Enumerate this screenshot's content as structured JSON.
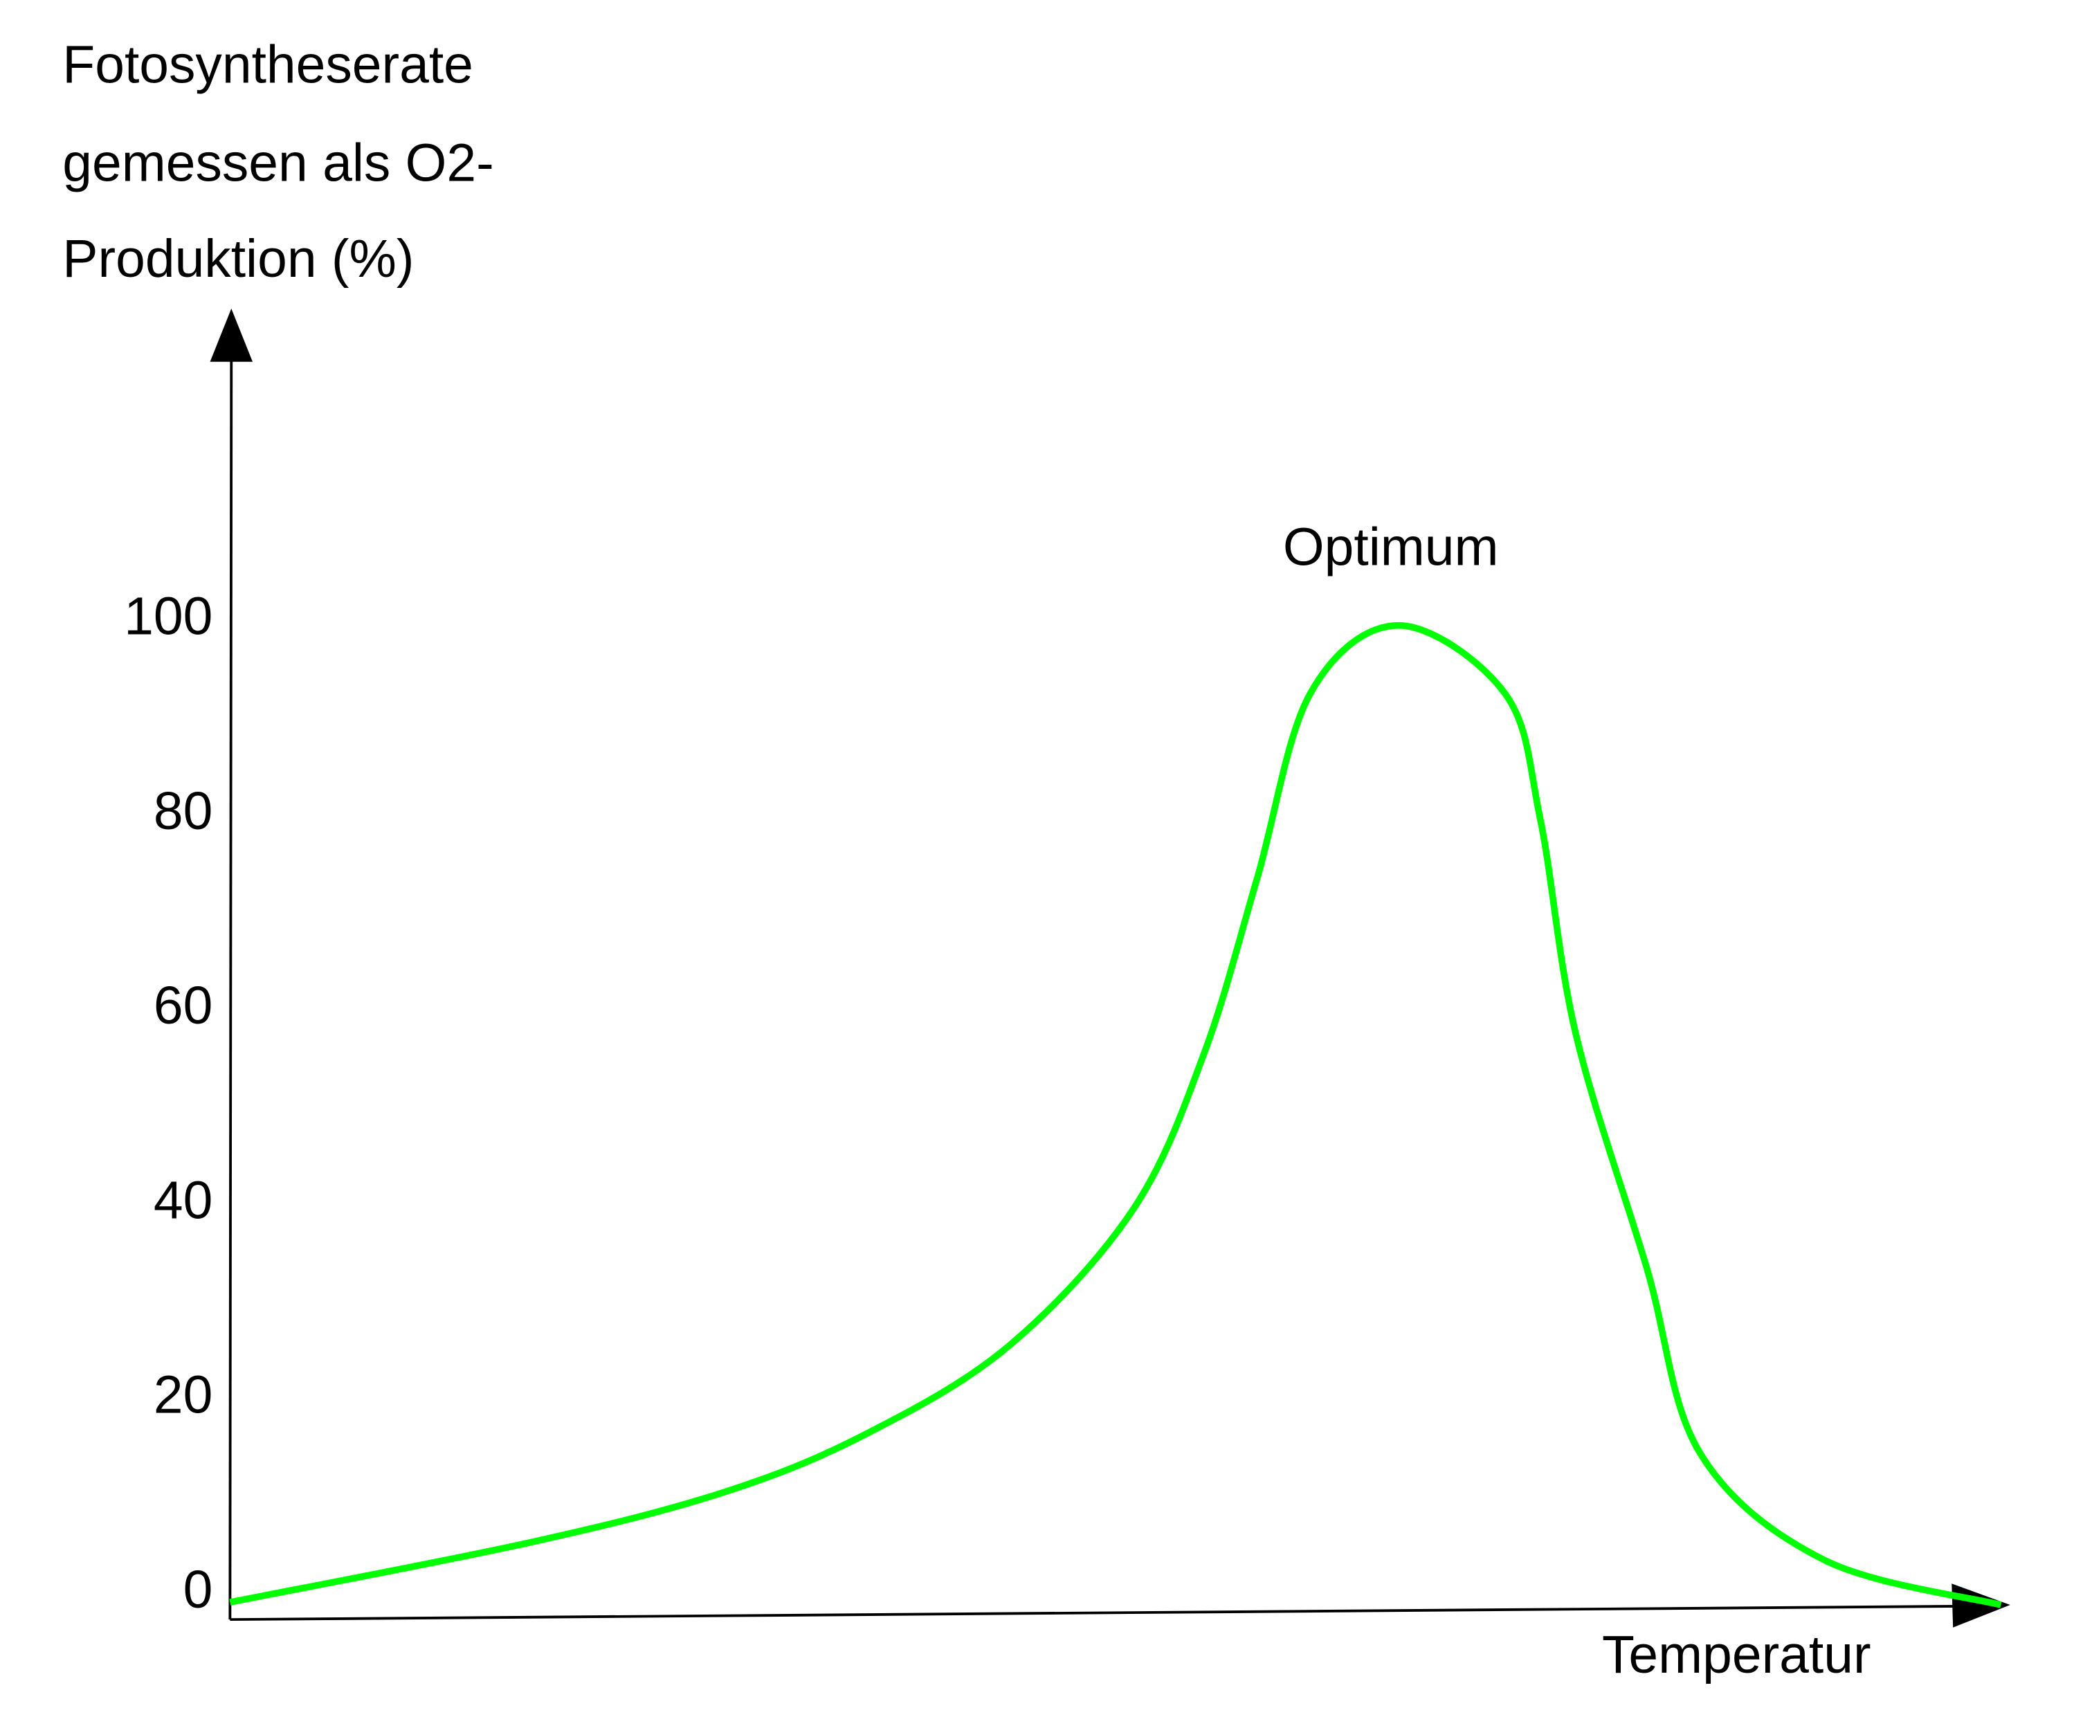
{
  "chart_data": {
    "type": "line",
    "title": "",
    "ylabel_lines": [
      "Fotosyntheserate",
      "gemessen als O2-",
      "Produktion (%)"
    ],
    "xlabel": "Temperatur",
    "ylim": [
      0,
      100
    ],
    "yticks": [
      "0",
      "20",
      "40",
      "60",
      "80",
      "100"
    ],
    "ytick_values": [
      0,
      20,
      40,
      60,
      80,
      100
    ],
    "xlim": [
      0,
      100
    ],
    "grid": false,
    "annotation": "Optimum",
    "line_color": "#00ff00",
    "series": [
      {
        "x": [
          0,
          17,
          28,
          36,
          44,
          51,
          55,
          58,
          61,
          66,
          72,
          74,
          76,
          80,
          83,
          90,
          100
        ],
        "y": [
          0,
          4.8,
          10,
          16,
          25,
          39,
          55,
          73,
          92,
          99,
          92,
          79,
          57,
          33,
          14,
          3,
          0
        ]
      }
    ]
  }
}
